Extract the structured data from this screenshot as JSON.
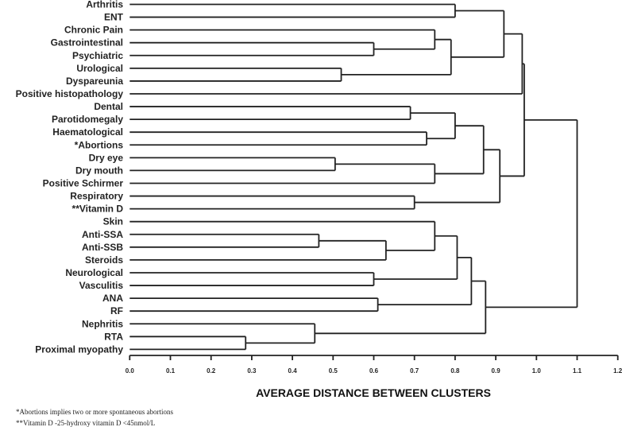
{
  "chart_data": {
    "type": "dendrogram",
    "xlabel": "AVERAGE DISTANCE BETWEEN CLUSTERS",
    "xlim": [
      0.0,
      1.2
    ],
    "x_ticks": [
      "0.0",
      "0.1",
      "0.2",
      "0.3",
      "0.4",
      "0.5",
      "0.6",
      "0.7",
      "0.8",
      "0.9",
      "1.0",
      "1.1",
      "1.2"
    ],
    "grid": false,
    "leaves": [
      "Arthritis",
      "ENT",
      "Chronic Pain",
      "Gastrointestinal",
      "Psychiatric",
      "Urological",
      "Dyspareunia",
      "Positive histopathology",
      "Dental",
      "Parotidomegaly",
      "Haematological",
      "*Abortions",
      "Dry eye",
      "Dry mouth",
      "Positive Schirmer",
      "Respiratory",
      "**Vitamin D",
      "Skin",
      "Anti-SSA",
      "Anti-SSB",
      "Steroids",
      "Neurological",
      "Vasculitis",
      "ANA",
      "RF",
      "Nephritis",
      "RTA",
      "Proximal myopathy"
    ],
    "tree": {
      "height": 1.1,
      "children": [
        {
          "height": 0.97,
          "children": [
            {
              "height": 0.965,
              "children": [
                {
                  "height": 0.92,
                  "children": [
                    {
                      "height": 0.8,
                      "children": [
                        0,
                        1
                      ]
                    },
                    {
                      "height": 0.79,
                      "children": [
                        {
                          "height": 0.75,
                          "children": [
                            2,
                            {
                              "height": 0.6,
                              "children": [
                                3,
                                4
                              ]
                            }
                          ]
                        },
                        {
                          "height": 0.52,
                          "children": [
                            5,
                            6
                          ]
                        }
                      ]
                    }
                  ]
                },
                7
              ]
            },
            {
              "height": 0.91,
              "children": [
                {
                  "height": 0.87,
                  "children": [
                    {
                      "height": 0.8,
                      "children": [
                        {
                          "height": 0.69,
                          "children": [
                            8,
                            9
                          ]
                        },
                        {
                          "height": 0.73,
                          "children": [
                            10,
                            11
                          ]
                        }
                      ]
                    },
                    {
                      "height": 0.75,
                      "children": [
                        {
                          "height": 0.505,
                          "children": [
                            12,
                            13
                          ]
                        },
                        14
                      ]
                    }
                  ]
                },
                {
                  "height": 0.7,
                  "children": [
                    15,
                    16
                  ]
                }
              ]
            }
          ]
        },
        {
          "height": 0.875,
          "children": [
            {
              "height": 0.84,
              "children": [
                {
                  "height": 0.805,
                  "children": [
                    {
                      "height": 0.75,
                      "children": [
                        17,
                        {
                          "height": 0.63,
                          "children": [
                            {
                              "height": 0.465,
                              "children": [
                                18,
                                19
                              ]
                            },
                            20
                          ]
                        }
                      ]
                    },
                    {
                      "height": 0.6,
                      "children": [
                        21,
                        22
                      ]
                    }
                  ]
                },
                {
                  "height": 0.61,
                  "children": [
                    23,
                    24
                  ]
                }
              ]
            },
            {
              "height": 0.455,
              "children": [
                25,
                {
                  "height": 0.285,
                  "children": [
                    26,
                    27
                  ]
                }
              ]
            }
          ]
        }
      ]
    }
  },
  "footnotes": [
    "*Abortions implies two or more spontaneous abortions",
    "**Vitamin D -25-hydroxy vitamin D <45nmol/L"
  ]
}
